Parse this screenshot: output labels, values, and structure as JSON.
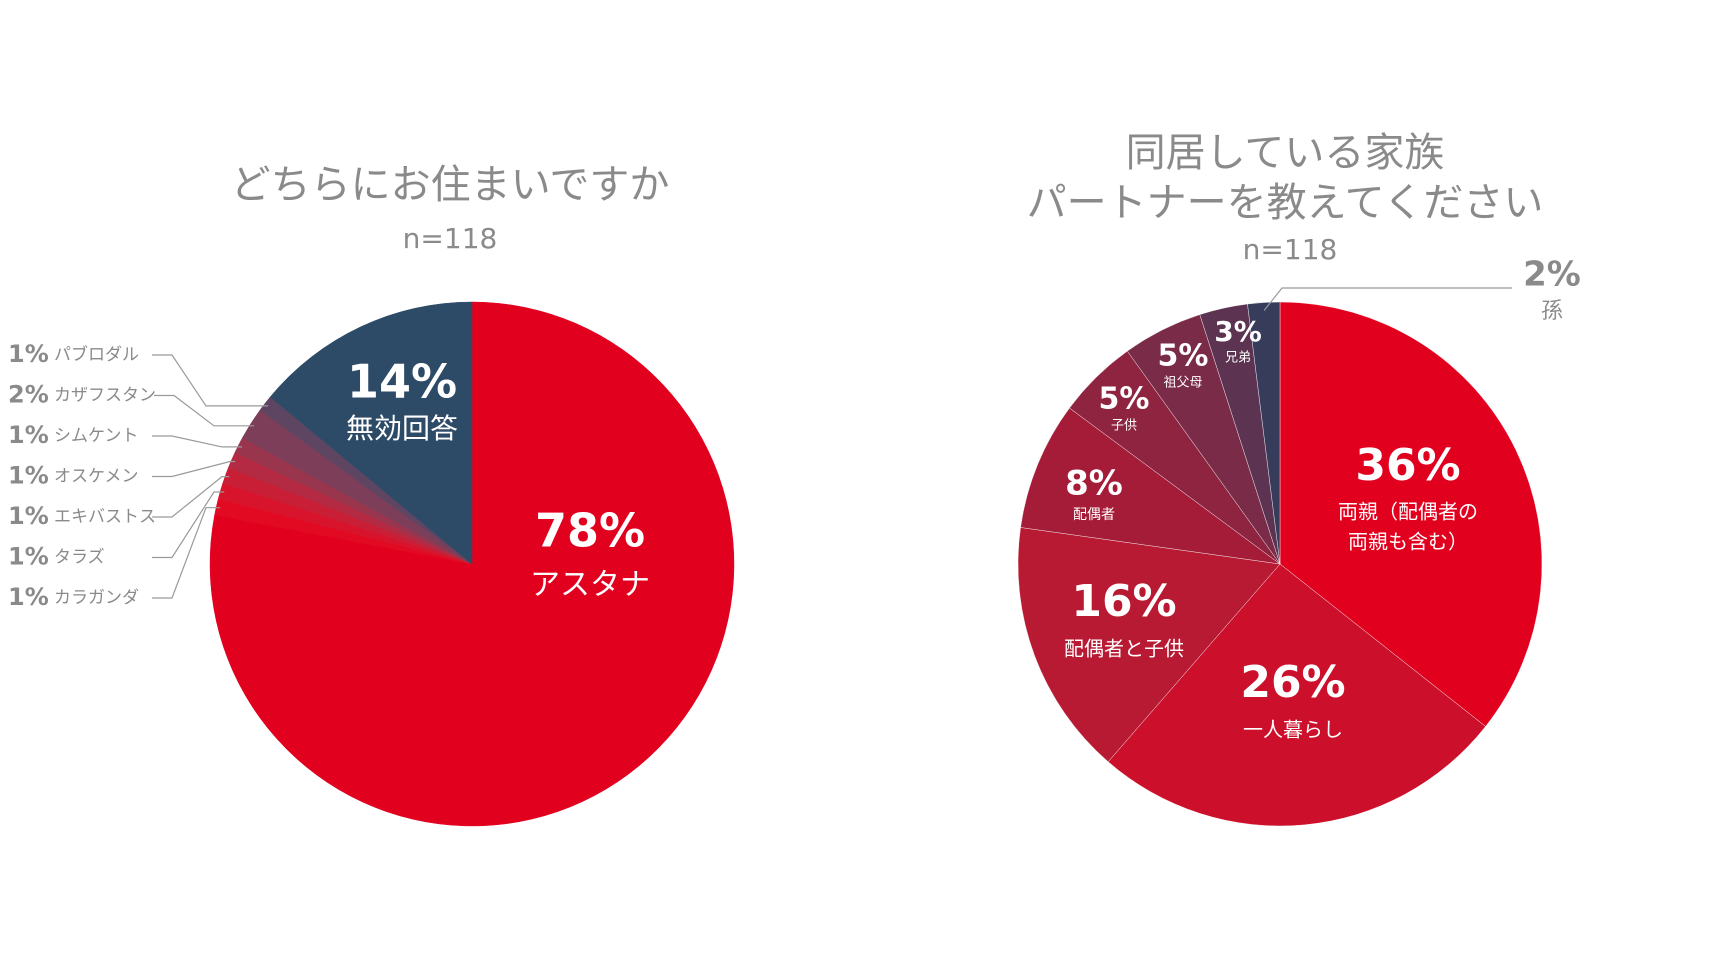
{
  "charts": [
    {
      "title": "どちらにお住まいですか",
      "n_label": "n=118"
    },
    {
      "title_lines": [
        "同居している家族",
        "パートナーを教えてください"
      ],
      "n_label": "n=118"
    }
  ],
  "colors": {
    "red": "#e2001f",
    "navy": "#2d4a67",
    "gray_text": "#8a8a8a",
    "leader": "#9a9a9a"
  },
  "chart_data": [
    {
      "type": "pie",
      "title": "どちらにお住まいですか",
      "slices": [
        {
          "label": "アスタナ",
          "value": 78,
          "pct_label": "78%"
        },
        {
          "label": "カラガンダ",
          "value": 1,
          "pct_label": "1%"
        },
        {
          "label": "タラズ",
          "value": 1,
          "pct_label": "1%"
        },
        {
          "label": "エキバストス",
          "value": 1,
          "pct_label": "1%"
        },
        {
          "label": "オスケメン",
          "value": 1,
          "pct_label": "1%"
        },
        {
          "label": "シムケント",
          "value": 1,
          "pct_label": "1%"
        },
        {
          "label": "カザフスタン",
          "value": 2,
          "pct_label": "2%"
        },
        {
          "label": "パブロダル",
          "value": 1,
          "pct_label": "1%"
        },
        {
          "label": "無効回答",
          "value": 14,
          "pct_label": "14%"
        }
      ]
    },
    {
      "type": "pie",
      "title": "同居している家族 パートナーを教えてください",
      "slices": [
        {
          "label": "両親（配偶者の両親も含む）",
          "label_lines": [
            "両親（配偶者の",
            "両親も含む）"
          ],
          "value": 36,
          "pct_label": "36%"
        },
        {
          "label": "一人暮らし",
          "value": 26,
          "pct_label": "26%"
        },
        {
          "label": "配偶者と子供",
          "value": 16,
          "pct_label": "16%"
        },
        {
          "label": "配偶者",
          "value": 8,
          "pct_label": "8%"
        },
        {
          "label": "子供",
          "value": 5,
          "pct_label": "5%"
        },
        {
          "label": "祖父母",
          "value": 5,
          "pct_label": "5%"
        },
        {
          "label": "兄弟",
          "value": 3,
          "pct_label": "3%"
        },
        {
          "label": "孫",
          "value": 2,
          "pct_label": "2%"
        }
      ]
    }
  ]
}
